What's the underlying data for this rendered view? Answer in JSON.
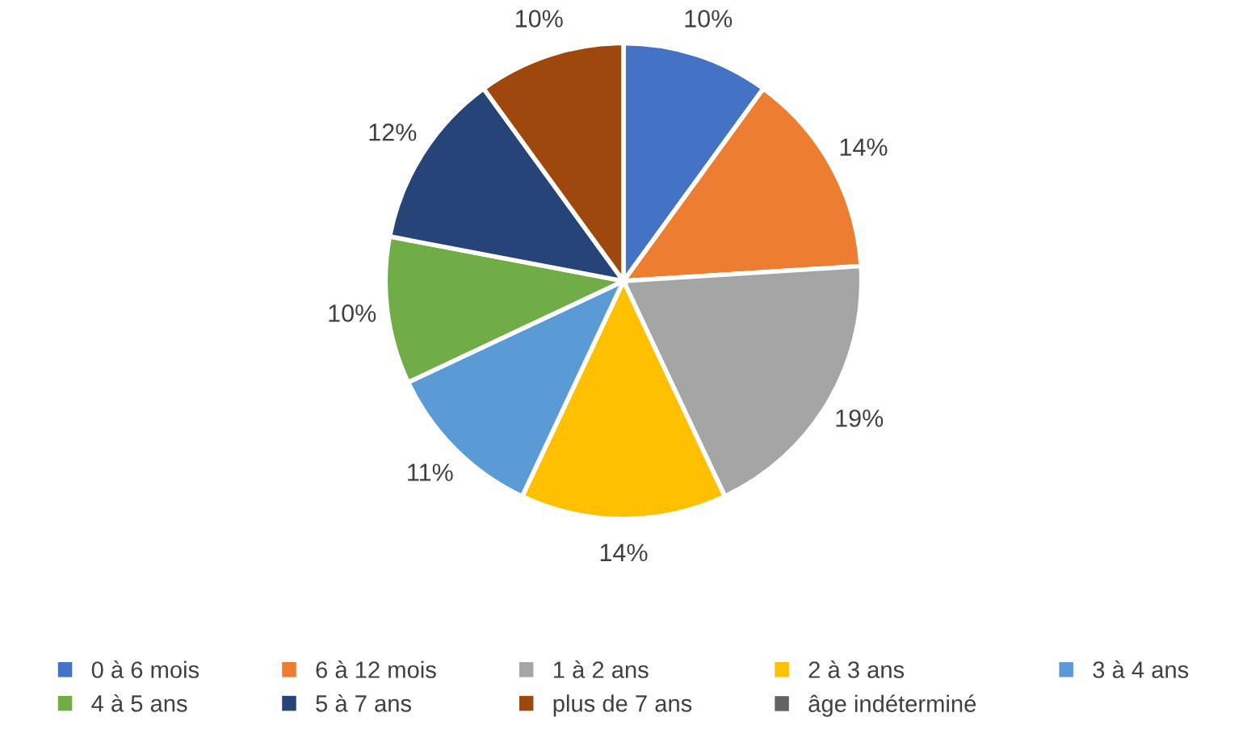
{
  "chart_data": {
    "type": "pie",
    "categories": [
      "0 à 6 mois",
      "6 à 12 mois",
      "1 à 2 ans",
      "2 à 3 ans",
      "3 à 4 ans",
      "4 à 5 ans",
      "5 à 7 ans",
      "plus de 7 ans",
      "âge indéterminé"
    ],
    "values": [
      10,
      14,
      19,
      14,
      11,
      10,
      12,
      10,
      0
    ],
    "colors": [
      "#4472c4",
      "#ed7d31",
      "#a5a5a5",
      "#ffc000",
      "#5b9bd5",
      "#70ad47",
      "#264478",
      "#9e480e",
      "#636363"
    ],
    "value_labels": [
      "10%",
      "14%",
      "19%",
      "14%",
      "11%",
      "10%",
      "12%",
      "10%",
      null
    ],
    "legend": "bottom"
  }
}
